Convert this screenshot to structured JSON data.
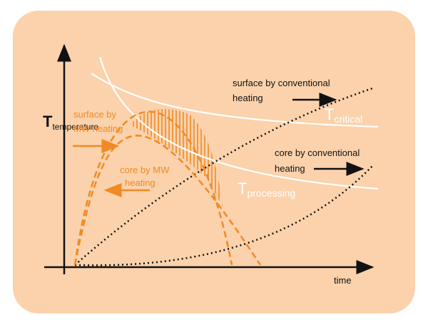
{
  "axes": {
    "y_label": {
      "main": "T",
      "sub": "temperature"
    },
    "x_label": "time"
  },
  "thresholds": {
    "critical": {
      "main": "T",
      "sub": "critical"
    },
    "processing": {
      "main": "T",
      "sub": "processing"
    }
  },
  "labels": {
    "surface_conventional": [
      "surface by conventional",
      "heating"
    ],
    "core_conventional": [
      "core by conventional",
      "heating"
    ],
    "surface_mw": [
      "surface by",
      "MW heating"
    ],
    "core_mw": [
      "core by MW",
      "heating"
    ]
  }
}
